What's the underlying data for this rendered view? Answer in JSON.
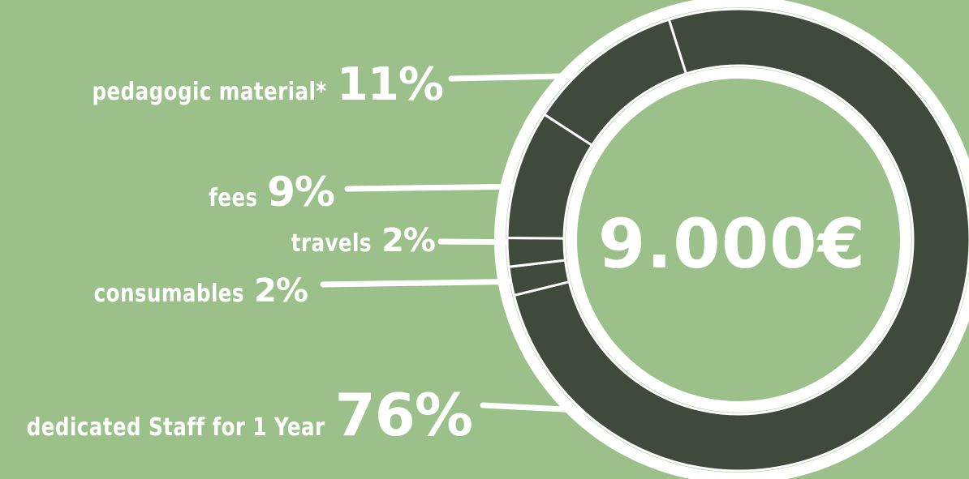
{
  "chart_data": {
    "type": "pie",
    "style": "donut",
    "center_label": "9.000€",
    "categories": [
      "dedicated Staff for 1 Year",
      "pedagogic material*",
      "fees",
      "travels",
      "consumables"
    ],
    "values": [
      76,
      11,
      9,
      2,
      2
    ],
    "value_labels": [
      "76%",
      "11%",
      "9%",
      "2%",
      "2%"
    ]
  },
  "colors": {
    "background": "#9bc08a",
    "ring": "#3f4a3c",
    "outline": "#ffffff"
  }
}
